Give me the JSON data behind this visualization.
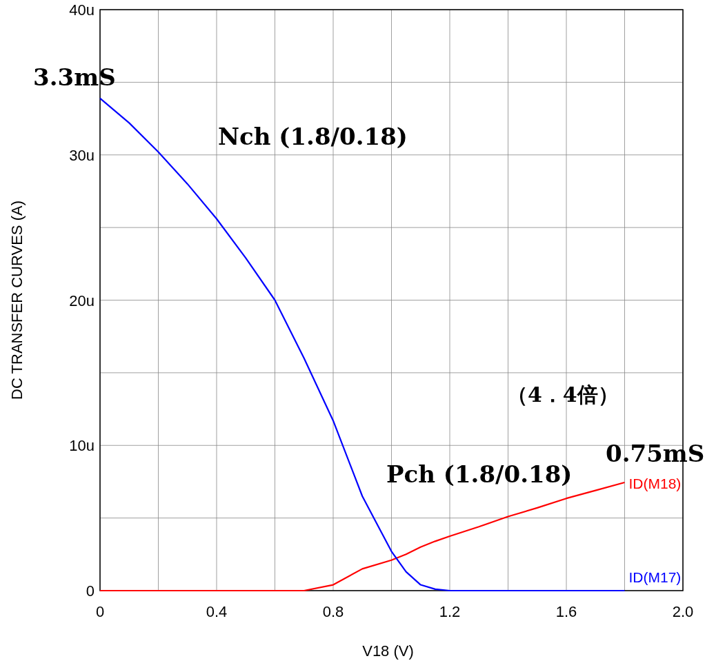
{
  "chart_data": {
    "type": "line",
    "xlabel": "V18  (V)",
    "ylabel": "DC TRANSFER CURVES  (A)",
    "xlim": [
      0,
      2.0
    ],
    "ylim": [
      0,
      40
    ],
    "xticks": [
      0,
      {
        "value": 0.2,
        "label": null
      },
      0.4,
      {
        "value": 0.6,
        "label": null
      },
      0.8,
      {
        "value": 1.0,
        "label": null
      },
      1.2,
      {
        "value": 1.4,
        "label": null
      },
      1.6,
      {
        "value": 1.8,
        "label": null
      },
      {
        "value": 2.0,
        "label": "2.0"
      }
    ],
    "yticks": [
      0,
      {
        "value": 5,
        "label": null
      },
      {
        "value": 10,
        "label": "10u"
      },
      {
        "value": 15,
        "label": null
      },
      {
        "value": 20,
        "label": "20u"
      },
      {
        "value": 25,
        "label": null
      },
      {
        "value": 30,
        "label": "30u"
      },
      {
        "value": 35,
        "label": null
      },
      {
        "value": 40,
        "label": "40u"
      }
    ],
    "grid": true,
    "legend": false,
    "marker": "none",
    "line_style": "solid",
    "x": [
      0,
      0.1,
      0.2,
      0.3,
      0.4,
      0.5,
      0.6,
      0.7,
      0.8,
      0.9,
      1.0,
      1.05,
      1.1,
      1.15,
      1.2,
      1.3,
      1.4,
      1.5,
      1.6,
      1.7,
      1.8
    ],
    "series": [
      {
        "name": "ID(M18)",
        "color": "#ff0000",
        "values": [
          0,
          0,
          0,
          0,
          0,
          0,
          0,
          0,
          0.4,
          1.5,
          2.1,
          2.5,
          3.0,
          3.4,
          3.75,
          4.4,
          5.1,
          5.7,
          6.35,
          6.9,
          7.45
        ]
      },
      {
        "name": "ID(M17)",
        "color": "#0000ff",
        "values": [
          33.9,
          32.2,
          30.2,
          28.0,
          25.6,
          22.9,
          20.0,
          16.0,
          11.7,
          6.5,
          2.7,
          1.3,
          0.4,
          0.1,
          0,
          0,
          0,
          0,
          0,
          0,
          0
        ]
      }
    ],
    "annotations": [
      "3.3mS",
      "Nch (1.8/0.18)",
      "（4．4倍）",
      "0.75mS",
      "Pch (1.8/0.18)"
    ]
  }
}
